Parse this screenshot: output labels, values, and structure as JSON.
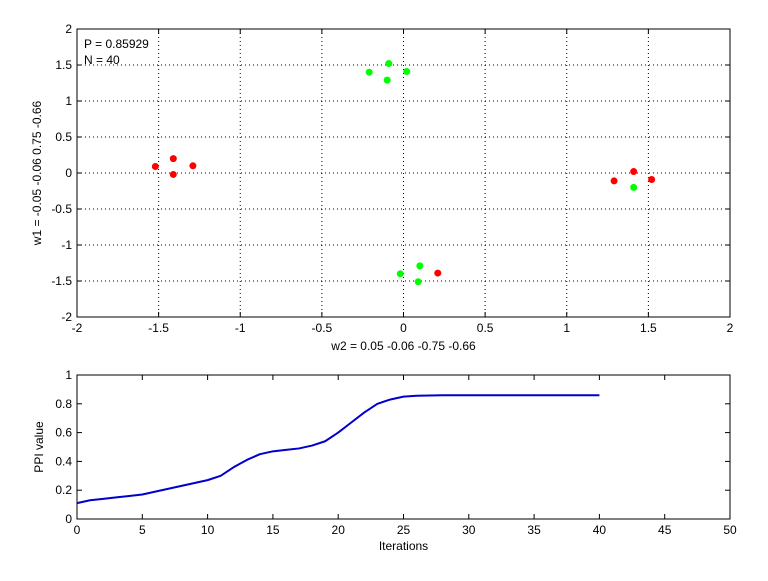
{
  "chart_data": [
    {
      "type": "scatter",
      "title": "",
      "xlabel": "w2 = 0.05  -0.06  -0.75  -0.66",
      "ylabel": "w1 = -0.05  -0.06  0.75  -0.66",
      "xlim": [
        -2,
        2
      ],
      "ylim": [
        -2,
        2
      ],
      "xticks": [
        -2,
        -1.5,
        -1,
        -0.5,
        0,
        0.5,
        1,
        1.5,
        2
      ],
      "yticks": [
        -2,
        -1.5,
        -1,
        -0.5,
        0,
        0.5,
        1,
        1.5,
        2
      ],
      "xtick_labels": [
        "-2",
        "-1.5",
        "-1",
        "-0.5",
        "0",
        "0.5",
        "1",
        "1.5",
        "2"
      ],
      "ytick_labels": [
        "-2",
        "-1.5",
        "-1",
        "-0.5",
        "0",
        "0.5",
        "1",
        "1.5",
        "2"
      ],
      "grid": true,
      "grid_style": "dotted",
      "annotations": [
        "P = 0.85929",
        "N = 40"
      ],
      "series": [
        {
          "color": "#ff0000",
          "points": [
            [
              -1.52,
              0.09
            ],
            [
              -1.41,
              0.2
            ],
            [
              -1.29,
              0.1
            ],
            [
              -1.41,
              -0.02
            ],
            [
              1.29,
              -0.11
            ],
            [
              1.41,
              0.02
            ],
            [
              1.52,
              -0.09
            ],
            [
              0.21,
              -1.39
            ]
          ]
        },
        {
          "color": "#00ff00",
          "points": [
            [
              -0.21,
              1.4
            ],
            [
              -0.09,
              1.52
            ],
            [
              0.02,
              1.41
            ],
            [
              -0.1,
              1.29
            ],
            [
              1.41,
              -0.2
            ],
            [
              -0.02,
              -1.4
            ],
            [
              0.1,
              -1.29
            ],
            [
              0.09,
              -1.51
            ]
          ]
        }
      ]
    },
    {
      "type": "line",
      "title": "",
      "xlabel": "Iterations",
      "ylabel": "PPI value",
      "xlim": [
        0,
        50
      ],
      "ylim": [
        0,
        1
      ],
      "xticks": [
        0,
        5,
        10,
        15,
        20,
        25,
        30,
        35,
        40,
        45,
        50
      ],
      "yticks": [
        0,
        0.2,
        0.4,
        0.6,
        0.8,
        1
      ],
      "xtick_labels": [
        "0",
        "5",
        "10",
        "15",
        "20",
        "25",
        "30",
        "35",
        "40",
        "45",
        "50"
      ],
      "ytick_labels": [
        "0",
        "0.2",
        "0.4",
        "0.6",
        "0.8",
        "1"
      ],
      "grid": false,
      "series": [
        {
          "color": "#0000cc",
          "x": [
            0,
            1,
            2,
            3,
            4,
            5,
            6,
            7,
            8,
            9,
            10,
            11,
            12,
            13,
            14,
            15,
            16,
            17,
            18,
            19,
            20,
            21,
            22,
            23,
            24,
            25,
            26,
            27,
            28,
            30,
            32,
            34,
            36,
            38,
            40
          ],
          "y": [
            0.11,
            0.13,
            0.14,
            0.15,
            0.16,
            0.17,
            0.19,
            0.21,
            0.23,
            0.25,
            0.27,
            0.3,
            0.36,
            0.41,
            0.45,
            0.47,
            0.48,
            0.49,
            0.51,
            0.54,
            0.6,
            0.67,
            0.74,
            0.8,
            0.83,
            0.85,
            0.856,
            0.858,
            0.859,
            0.859,
            0.859,
            0.859,
            0.859,
            0.859,
            0.859
          ]
        }
      ]
    }
  ]
}
